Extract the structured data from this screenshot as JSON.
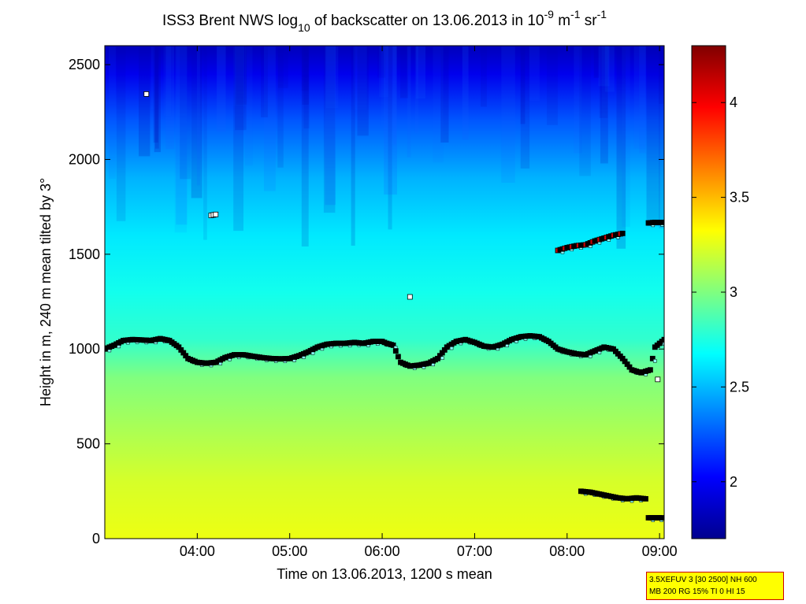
{
  "chart_data": {
    "type": "heatmap",
    "title_parts": {
      "a": "ISS3 Brent NWS log",
      "b": "10",
      "c": " of backscatter on 13.06.2013 in 10",
      "d": "-9",
      "e": " m",
      "f": "-1",
      "g": " sr",
      "h": "-1"
    },
    "xlabel": "Time on 13.06.2013, 1200 s mean",
    "ylabel": "Height in m, 240 m mean tilted by 3°",
    "x_ticks": [
      "04:00",
      "05:00",
      "06:00",
      "07:00",
      "08:00",
      "09:00"
    ],
    "x_range_hours": [
      3.0,
      9.05
    ],
    "y_ticks": [
      0,
      500,
      1000,
      1500,
      2000,
      2500
    ],
    "y_range": [
      0,
      2600
    ],
    "colorbar": {
      "range": [
        1.7,
        4.3
      ],
      "ticks": [
        2,
        2.5,
        3,
        3.5,
        4
      ],
      "colormap": "jet"
    },
    "backscatter_profile": [
      {
        "height": 0,
        "value": 3.28
      },
      {
        "height": 300,
        "value": 3.22
      },
      {
        "height": 600,
        "value": 3.1
      },
      {
        "height": 850,
        "value": 3.0
      },
      {
        "height": 1050,
        "value": 2.8
      },
      {
        "height": 1300,
        "value": 2.72
      },
      {
        "height": 1600,
        "value": 2.62
      },
      {
        "height": 1900,
        "value": 2.48
      },
      {
        "height": 2200,
        "value": 2.25
      },
      {
        "height": 2450,
        "value": 1.98
      },
      {
        "height": 2600,
        "value": 1.85
      }
    ],
    "series": [
      {
        "points": [
          [
            3.0,
            1000
          ],
          [
            3.1,
            1020
          ],
          [
            3.2,
            1045
          ],
          [
            3.3,
            1050
          ],
          [
            3.4,
            1048
          ],
          [
            3.5,
            1045
          ],
          [
            3.6,
            1055
          ],
          [
            3.7,
            1045
          ],
          [
            3.8,
            1010
          ],
          [
            3.9,
            950
          ],
          [
            4.0,
            930
          ],
          [
            4.1,
            925
          ],
          [
            4.2,
            930
          ],
          [
            4.3,
            955
          ],
          [
            4.4,
            970
          ],
          [
            4.5,
            970
          ],
          [
            4.6,
            962
          ],
          [
            4.7,
            955
          ],
          [
            4.8,
            950
          ],
          [
            4.9,
            948
          ],
          [
            5.0,
            950
          ],
          [
            5.1,
            965
          ],
          [
            5.2,
            985
          ],
          [
            5.3,
            1010
          ],
          [
            5.4,
            1025
          ],
          [
            5.5,
            1030
          ],
          [
            5.6,
            1030
          ],
          [
            5.7,
            1035
          ],
          [
            5.8,
            1030
          ],
          [
            5.9,
            1040
          ],
          [
            6.0,
            1040
          ],
          [
            6.05,
            1030
          ],
          [
            6.12,
            1020
          ],
          [
            6.2,
            930
          ],
          [
            6.3,
            910
          ],
          [
            6.4,
            915
          ],
          [
            6.5,
            925
          ],
          [
            6.6,
            950
          ],
          [
            6.7,
            1010
          ],
          [
            6.8,
            1040
          ],
          [
            6.9,
            1050
          ],
          [
            7.0,
            1035
          ],
          [
            7.1,
            1015
          ],
          [
            7.2,
            1010
          ],
          [
            7.3,
            1025
          ],
          [
            7.4,
            1050
          ],
          [
            7.5,
            1065
          ],
          [
            7.6,
            1070
          ],
          [
            7.7,
            1065
          ],
          [
            7.8,
            1040
          ],
          [
            7.9,
            1000
          ],
          [
            8.0,
            985
          ],
          [
            8.1,
            975
          ],
          [
            8.2,
            970
          ],
          [
            8.3,
            990
          ],
          [
            8.4,
            1010
          ],
          [
            8.5,
            1000
          ],
          [
            8.6,
            950
          ],
          [
            8.7,
            890
          ],
          [
            8.8,
            875
          ],
          [
            8.9,
            890
          ],
          [
            8.95,
            1010
          ],
          [
            9.0,
            1030
          ],
          [
            9.05,
            1050
          ]
        ]
      },
      {
        "points": [
          [
            7.9,
            1520
          ],
          [
            8.0,
            1535
          ],
          [
            8.1,
            1545
          ],
          [
            8.2,
            1550
          ],
          [
            8.3,
            1570
          ],
          [
            8.4,
            1585
          ],
          [
            8.5,
            1600
          ],
          [
            8.6,
            1610
          ]
        ]
      },
      {
        "points": [
          [
            8.15,
            250
          ],
          [
            8.25,
            245
          ],
          [
            8.35,
            235
          ],
          [
            8.45,
            225
          ],
          [
            8.55,
            215
          ],
          [
            8.65,
            210
          ],
          [
            8.75,
            215
          ],
          [
            8.85,
            210
          ]
        ]
      },
      {
        "points": [
          [
            8.88,
            110
          ],
          [
            8.95,
            110
          ],
          [
            9.02,
            110
          ]
        ]
      },
      {
        "points": [
          [
            8.88,
            1665
          ],
          [
            8.95,
            1668
          ],
          [
            9.03,
            1668
          ]
        ]
      },
      {
        "points": [
          [
            4.15,
            1705
          ],
          [
            4.2,
            1710
          ]
        ]
      },
      {
        "points": [
          [
            3.45,
            2345
          ]
        ]
      },
      {
        "points": [
          [
            6.3,
            1275
          ]
        ]
      },
      {
        "points": [
          [
            8.98,
            840
          ]
        ]
      }
    ]
  },
  "info_box": {
    "line1": "3.5XEFUV 3 [30 2500] NH 600",
    "line2": "MB 200 RG 15% TI 0 HI 15"
  }
}
